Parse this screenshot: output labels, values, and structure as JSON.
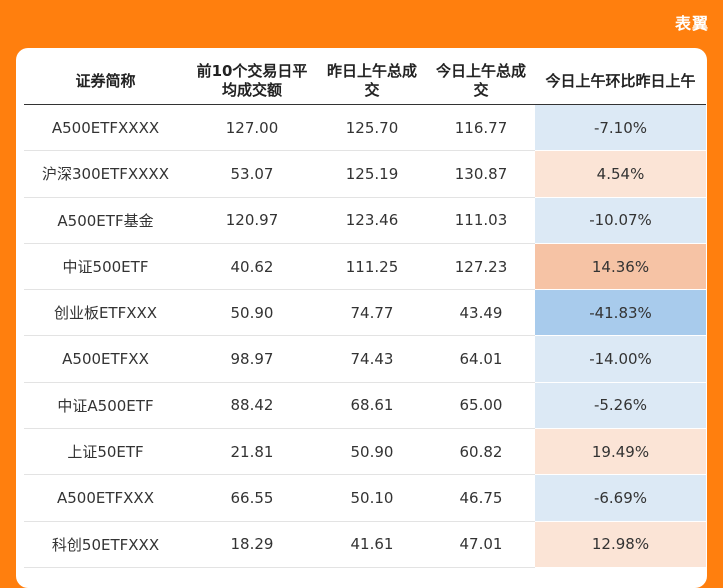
{
  "brand": "表翼",
  "table": {
    "headers": [
      "证券简称",
      "前10个交易日平均成交额",
      "昨日上午总成交",
      "今日上午总成交",
      "今日上午环比昨日上午"
    ],
    "rows": [
      {
        "name": "A500ETFXXXX",
        "avg10": "127.00",
        "yesterday": "125.70",
        "today": "116.77",
        "change": "-7.10%",
        "color": "#dce9f5"
      },
      {
        "name": "沪深300ETFXXXX",
        "avg10": "53.07",
        "yesterday": "125.19",
        "today": "130.87",
        "change": "4.54%",
        "color": "#fbe4d6"
      },
      {
        "name": "A500ETF基金",
        "avg10": "120.97",
        "yesterday": "123.46",
        "today": "111.03",
        "change": "-10.07%",
        "color": "#dce9f5"
      },
      {
        "name": "中证500ETF",
        "avg10": "40.62",
        "yesterday": "111.25",
        "today": "127.23",
        "change": "14.36%",
        "color": "#f6c3a5"
      },
      {
        "name": "创业板ETFXXX",
        "avg10": "50.90",
        "yesterday": "74.77",
        "today": "43.49",
        "change": "-41.83%",
        "color": "#a8cbec"
      },
      {
        "name": "A500ETFXX",
        "avg10": "98.97",
        "yesterday": "74.43",
        "today": "64.01",
        "change": "-14.00%",
        "color": "#dce9f5"
      },
      {
        "name": "中证A500ETF",
        "avg10": "88.42",
        "yesterday": "68.61",
        "today": "65.00",
        "change": "-5.26%",
        "color": "#dce9f5"
      },
      {
        "name": "上证50ETF",
        "avg10": "21.81",
        "yesterday": "50.90",
        "today": "60.82",
        "change": "19.49%",
        "color": "#fbe4d6"
      },
      {
        "name": "A500ETFXXX",
        "avg10": "66.55",
        "yesterday": "50.10",
        "today": "46.75",
        "change": "-6.69%",
        "color": "#dce9f5"
      },
      {
        "name": "科创50ETFXXX",
        "avg10": "18.29",
        "yesterday": "41.61",
        "today": "47.01",
        "change": "12.98%",
        "color": "#fbe4d6"
      }
    ]
  }
}
